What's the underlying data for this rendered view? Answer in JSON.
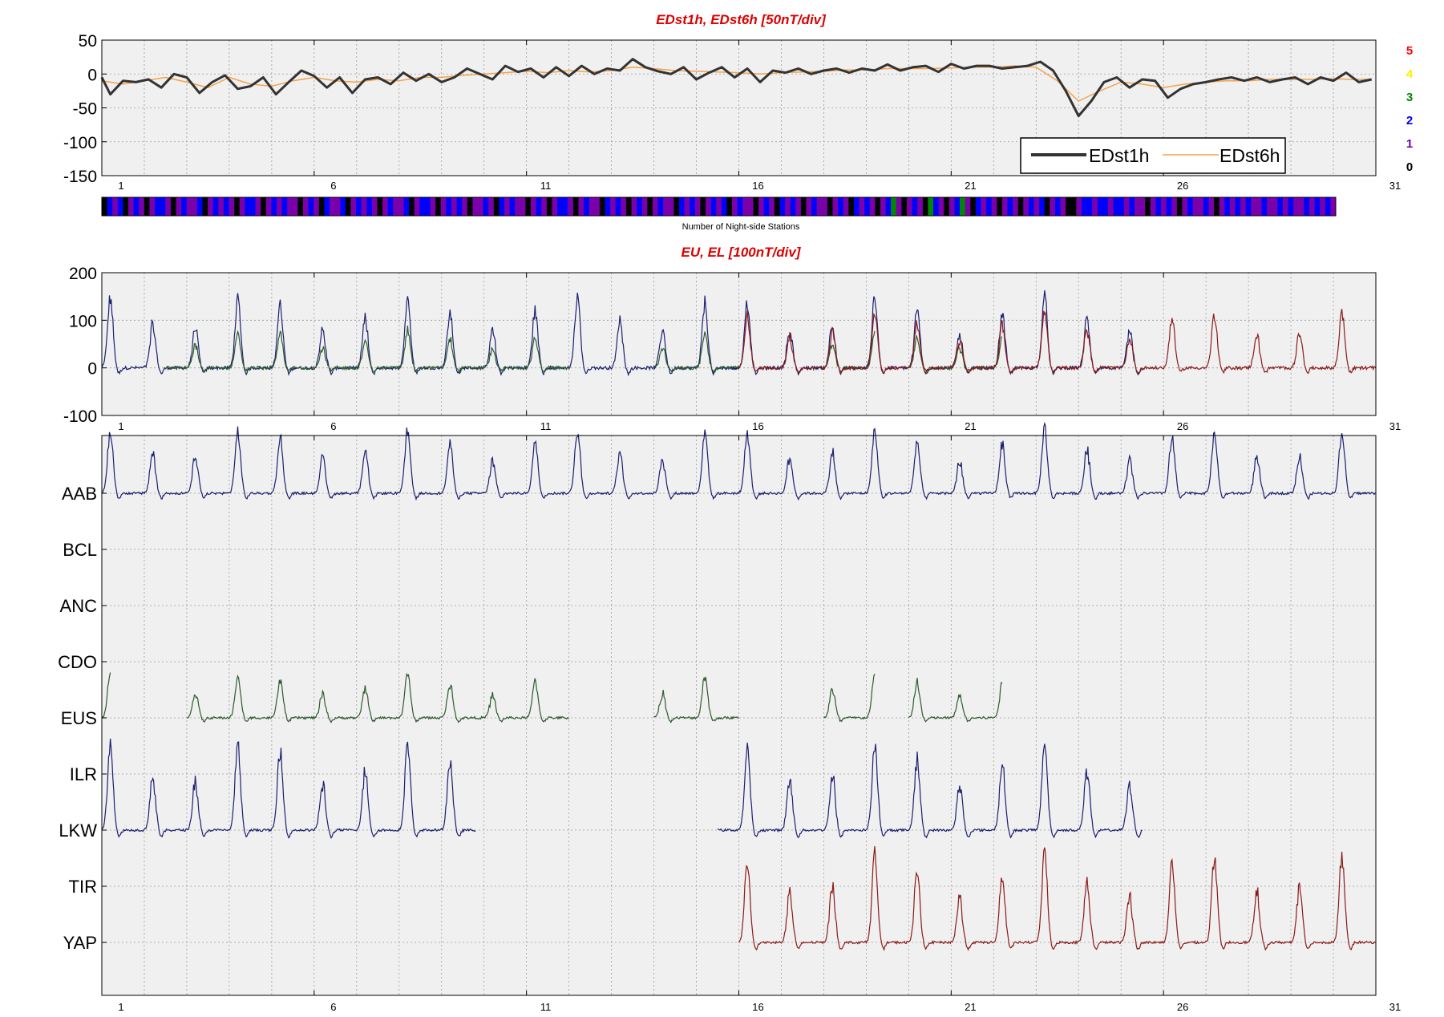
{
  "chart_data": [
    {
      "type": "line",
      "title": "EDst1h, EDst6h [50nT/div]",
      "ylim": [
        -150,
        50
      ],
      "yticks": [
        "50",
        "0",
        "-50",
        "-100",
        "-150"
      ],
      "xlim": [
        1,
        31
      ],
      "xticks": [
        "1",
        "6",
        "11",
        "16",
        "21",
        "26",
        "31"
      ],
      "grid": true,
      "legend": {
        "position": "bottom-right",
        "entries": [
          "EDst1h",
          "EDst6h"
        ]
      },
      "series": [
        {
          "name": "EDst1h",
          "color": "#333333",
          "x": [
            1.0,
            1.2,
            1.5,
            1.8,
            2.1,
            2.4,
            2.7,
            3.0,
            3.3,
            3.6,
            3.9,
            4.2,
            4.5,
            4.8,
            5.1,
            5.4,
            5.7,
            6.0,
            6.3,
            6.6,
            6.9,
            7.2,
            7.5,
            7.8,
            8.1,
            8.4,
            8.7,
            9.0,
            9.3,
            9.6,
            9.9,
            10.2,
            10.5,
            10.8,
            11.1,
            11.4,
            11.7,
            12.0,
            12.3,
            12.6,
            12.9,
            13.2,
            13.5,
            13.8,
            14.1,
            14.4,
            14.7,
            15.0,
            15.3,
            15.6,
            15.9,
            16.2,
            16.5,
            16.8,
            17.1,
            17.4,
            17.7,
            18.0,
            18.3,
            18.6,
            18.9,
            19.2,
            19.5,
            19.8,
            20.1,
            20.4,
            20.7,
            21.0,
            21.3,
            21.6,
            21.9,
            22.2,
            22.5,
            22.8,
            23.1,
            23.4,
            23.7,
            24.0,
            24.3,
            24.6,
            24.9,
            25.2,
            25.5,
            25.8,
            26.1,
            26.4,
            26.7,
            27.0,
            27.3,
            27.6,
            27.9,
            28.2,
            28.5,
            28.8,
            29.1,
            29.4,
            29.7,
            30.0,
            30.3,
            30.6,
            30.9
          ],
          "values": [
            -5,
            -30,
            -10,
            -12,
            -8,
            -20,
            0,
            -5,
            -28,
            -12,
            -2,
            -22,
            -18,
            -5,
            -30,
            -12,
            5,
            -3,
            -20,
            -5,
            -28,
            -8,
            -5,
            -15,
            2,
            -10,
            0,
            -12,
            -5,
            8,
            0,
            -8,
            12,
            3,
            8,
            -5,
            10,
            -3,
            12,
            0,
            8,
            5,
            22,
            10,
            4,
            0,
            10,
            -8,
            2,
            10,
            -5,
            8,
            -12,
            5,
            2,
            8,
            0,
            5,
            8,
            2,
            8,
            5,
            14,
            5,
            10,
            12,
            3,
            15,
            8,
            12,
            12,
            8,
            10,
            12,
            18,
            5,
            -25,
            -62,
            -40,
            -12,
            -5,
            -20,
            -8,
            -10,
            -35,
            -22,
            -15,
            -12,
            -8,
            -5,
            -10,
            -5,
            -12,
            -8,
            -5,
            -15,
            -5,
            -10,
            2,
            -12,
            -8
          ]
        },
        {
          "name": "EDst6h",
          "color": "#f5a34a",
          "x": [
            1.0,
            1.5,
            2.0,
            2.5,
            3.0,
            3.5,
            4.0,
            4.5,
            5.0,
            5.5,
            6.0,
            6.5,
            7.0,
            7.5,
            8.0,
            8.5,
            9.0,
            9.5,
            10.0,
            10.5,
            11.0,
            11.5,
            12.0,
            12.5,
            13.0,
            13.5,
            14.0,
            14.5,
            15.0,
            15.5,
            16.0,
            16.5,
            17.0,
            17.5,
            18.0,
            18.5,
            19.0,
            19.5,
            20.0,
            20.5,
            21.0,
            21.5,
            22.0,
            22.5,
            23.0,
            23.5,
            24.0,
            24.5,
            25.0,
            25.5,
            26.0,
            26.5,
            27.0,
            27.5,
            28.0,
            28.5,
            29.0,
            29.5,
            30.0,
            30.5,
            30.9
          ],
          "values": [
            -10,
            -15,
            -10,
            -5,
            -12,
            -20,
            -5,
            -15,
            -18,
            -10,
            -5,
            -10,
            -12,
            -8,
            -10,
            -5,
            -5,
            -2,
            0,
            2,
            4,
            2,
            5,
            3,
            5,
            10,
            8,
            5,
            4,
            3,
            2,
            0,
            2,
            3,
            4,
            6,
            6,
            8,
            8,
            8,
            9,
            10,
            10,
            12,
            10,
            -10,
            -40,
            -25,
            -12,
            -15,
            -20,
            -15,
            -12,
            -10,
            -10,
            -8,
            -8,
            -8,
            -7,
            -8,
            -8
          ]
        }
      ]
    },
    {
      "type": "heatmap",
      "label": "Number of Night-side Stations",
      "xlim": [
        1,
        31
      ],
      "legend": {
        "position": "right",
        "entries": [
          "5",
          "4",
          "3",
          "2",
          "1",
          "0"
        ],
        "colors": [
          "#ff0000",
          "#ffee00",
          "#008800",
          "#0000ff",
          "#7a00aa",
          "#000000"
        ]
      },
      "values": [
        0,
        2,
        1,
        2,
        0,
        1,
        2,
        1,
        0,
        1,
        2,
        2,
        1,
        0,
        1,
        2,
        1,
        1,
        2,
        0,
        1,
        2,
        1,
        2,
        1,
        0,
        1,
        2,
        2,
        1,
        0,
        1,
        2,
        1,
        2,
        1,
        1,
        0,
        1,
        2,
        1,
        0,
        2,
        1,
        1,
        2,
        0,
        1,
        2,
        1,
        2,
        1,
        0,
        1,
        2,
        1,
        1,
        2,
        0,
        1,
        2,
        2,
        1,
        0,
        1,
        2,
        1,
        2,
        1,
        0,
        1,
        1,
        2,
        1,
        0,
        2,
        1,
        2,
        1,
        1,
        0,
        1,
        2,
        1,
        0,
        1,
        2,
        2,
        1,
        0,
        1,
        2,
        1,
        1,
        0,
        2,
        1,
        2,
        1,
        0,
        1,
        2,
        1,
        0,
        1,
        2,
        1,
        1,
        0,
        2,
        1,
        2,
        1,
        0,
        1,
        2,
        1,
        2,
        0,
        1,
        2,
        1,
        1,
        0,
        1,
        2,
        1,
        0,
        2,
        1,
        2,
        1,
        0,
        1,
        2,
        1,
        1,
        0,
        1,
        2,
        1,
        0,
        2,
        1,
        2,
        1,
        0,
        1,
        2,
        3,
        1,
        0,
        1,
        2,
        1,
        0,
        3,
        2,
        1,
        0,
        1,
        2,
        3,
        1,
        0,
        2,
        1,
        2,
        1,
        0,
        1,
        2,
        1,
        0,
        1,
        2,
        1,
        2,
        0,
        1,
        2,
        1,
        0,
        0,
        1,
        2,
        2,
        1,
        2,
        2,
        1,
        2,
        2,
        1,
        2,
        1,
        1,
        0,
        1,
        2,
        1,
        2,
        1,
        0,
        1,
        2,
        1,
        1,
        2,
        1,
        0,
        1,
        2,
        1,
        2,
        1,
        2,
        1,
        1,
        2,
        1,
        1,
        2,
        1,
        2,
        1,
        1,
        2,
        1,
        2,
        1,
        2,
        1
      ]
    },
    {
      "type": "line",
      "title": "EU, EL   [100nT/div]",
      "ylim": [
        -100,
        200
      ],
      "yticks": [
        "200",
        "100",
        "0",
        "-100"
      ],
      "xlim": [
        1,
        31
      ],
      "xticks": [
        "1",
        "6",
        "11",
        "16",
        "21",
        "26",
        "31"
      ],
      "grid": true,
      "series": [
        {
          "color": "#1b1f6e",
          "segments": [
            [
              1,
              16
            ],
            [
              15.5,
              25.5
            ]
          ],
          "peak": 150
        },
        {
          "color": "#2d5a2d",
          "segments": [
            [
              2.5,
              12
            ],
            [
              14,
              16
            ],
            [
              18,
              19.2
            ],
            [
              20,
              22.2
            ]
          ],
          "peak": 80
        },
        {
          "color": "#8a1a1a",
          "segments": [
            [
              16,
              31
            ]
          ],
          "peak": 120
        }
      ]
    },
    {
      "type": "line",
      "title": "",
      "xlim": [
        1,
        31
      ],
      "xticks": [
        "1",
        "6",
        "11",
        "16",
        "21",
        "26",
        "31"
      ],
      "grid": true,
      "stations": [
        "AAB",
        "BCL",
        "ANC",
        "CDO",
        "EUS",
        "ILR",
        "LKW",
        "TIR",
        "YAP"
      ],
      "series": [
        {
          "name": "AAB",
          "color": "#1b1f6e",
          "segments": [
            [
              1,
              31
            ]
          ],
          "peak": 80
        },
        {
          "name": "BCL",
          "color": "#1b1f6e",
          "segments": []
        },
        {
          "name": "ANC",
          "color": "#1b1f6e",
          "segments": []
        },
        {
          "name": "CDO",
          "color": "#1b1f6e",
          "segments": []
        },
        {
          "name": "EUS",
          "color": "#2d5a2d",
          "segments": [
            [
              1,
              1.2
            ],
            [
              3,
              12
            ],
            [
              14,
              16
            ],
            [
              18,
              19.2
            ],
            [
              20,
              22.2
            ]
          ],
          "peak": 55
        },
        {
          "name": "ILR",
          "color": "#1b1f6e",
          "segments": []
        },
        {
          "name": "LKW",
          "color": "#1b1f6e",
          "segments": [
            [
              1,
              9.8
            ],
            [
              15.5,
              25.5
            ]
          ],
          "peak": 110
        },
        {
          "name": "TIR",
          "color": "#1b1f6e",
          "segments": []
        },
        {
          "name": "YAP",
          "color": "#8a1a1a",
          "segments": [
            [
              16,
              31
            ]
          ],
          "peak": 110
        }
      ]
    }
  ]
}
